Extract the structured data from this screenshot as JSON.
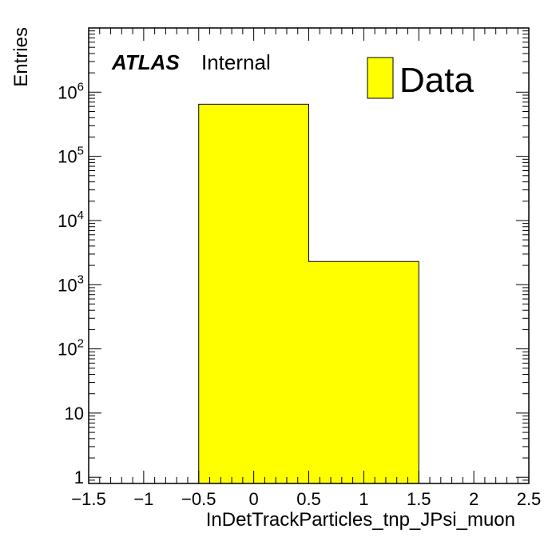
{
  "chart_data": {
    "type": "bar",
    "style": "histogram",
    "y_scale": "log",
    "xlabel": "InDetTrackParticles_tnp_JPsi_muon",
    "ylabel": "Entries",
    "xlim": [
      -1.5,
      2.5
    ],
    "ylim": [
      0.8,
      10000000
    ],
    "bins": [
      {
        "low": -0.5,
        "high": 0.5,
        "value": 650000
      },
      {
        "low": 0.5,
        "high": 1.5,
        "value": 2300
      }
    ],
    "x_ticks": [
      "−1.5",
      "−1",
      "−0.5",
      "0",
      "0.5",
      "1",
      "1.5",
      "2",
      "2.5"
    ],
    "y_ticks": [
      {
        "base": "1",
        "exp": ""
      },
      {
        "base": "10",
        "exp": ""
      },
      {
        "base": "10",
        "exp": "2"
      },
      {
        "base": "10",
        "exp": "3"
      },
      {
        "base": "10",
        "exp": "4"
      },
      {
        "base": "10",
        "exp": "5"
      },
      {
        "base": "10",
        "exp": "6"
      }
    ],
    "legend": [
      {
        "name": "Data",
        "color": "#ffff00"
      }
    ],
    "legend_position": "top-right",
    "experiment_label": "ATLAS",
    "status_label": "Internal",
    "fill_color": "#ffff00",
    "grid": false
  }
}
